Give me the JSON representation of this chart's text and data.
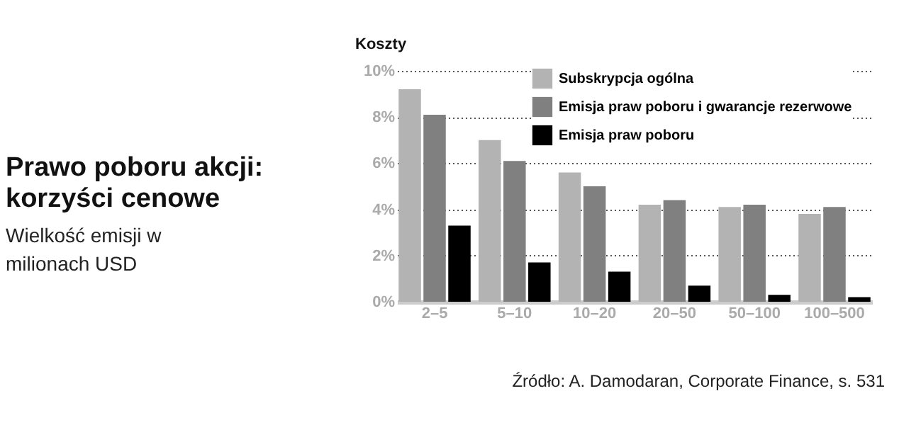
{
  "chart_data": {
    "type": "bar",
    "title": "Prawo poboru akcji: korzyści cenowe",
    "subtitle": "Wielkość emisji w milionach USD",
    "ylabel": "Koszty",
    "categories": [
      "2–5",
      "5–10",
      "10–20",
      "20–50",
      "50–100",
      "100–500"
    ],
    "series": [
      {
        "name": "Subskrypcja ogólna",
        "color": "#b3b3b3",
        "values": [
          9.2,
          7.0,
          5.6,
          4.2,
          4.1,
          3.8
        ]
      },
      {
        "name": "Emisja praw poboru i gwarancje rezerwowe",
        "color": "#808080",
        "values": [
          8.1,
          6.1,
          5.0,
          4.4,
          4.2,
          4.1
        ]
      },
      {
        "name": "Emisja praw poboru",
        "color": "#000000",
        "values": [
          3.3,
          1.7,
          1.3,
          0.7,
          0.3,
          0.2
        ]
      }
    ],
    "ylim": [
      0,
      10
    ],
    "yticks": [
      {
        "value": 0,
        "label": "0%"
      },
      {
        "value": 2,
        "label": "2%"
      },
      {
        "value": 4,
        "label": "4%"
      },
      {
        "value": 6,
        "label": "6%"
      },
      {
        "value": 8,
        "label": "8%"
      },
      {
        "value": 10,
        "label": "10%"
      }
    ],
    "grid": "y",
    "legend": "top right",
    "annotations": [
      "Źródło: A. Damodaran, Corporate Finance, s. 531"
    ]
  }
}
